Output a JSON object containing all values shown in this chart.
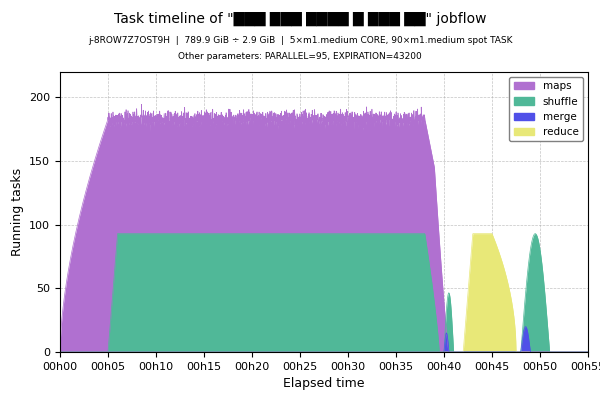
{
  "title": "Task timeline of \"███ ███ ████ █ ███ ██\" jobflow",
  "subtitle1": "j-8ROW7Z7OST9H  |  789.9 GiB ÷ 2.9 GiB  |  5×m1.medium CORE, 90×m1.medium spot TASK",
  "subtitle2": "Other parameters: PARALLEL=95, EXPIRATION=43200",
  "xlabel": "Elapsed time",
  "ylabel": "Running tasks",
  "colors": {
    "maps": "#b070d0",
    "shuffle": "#50b898",
    "merge": "#5050e8",
    "reduce": "#e8e878"
  },
  "background": "#ffffff",
  "grid_color": "#aaaaaa",
  "total_minutes": 55,
  "tick_interval_minutes": 5
}
